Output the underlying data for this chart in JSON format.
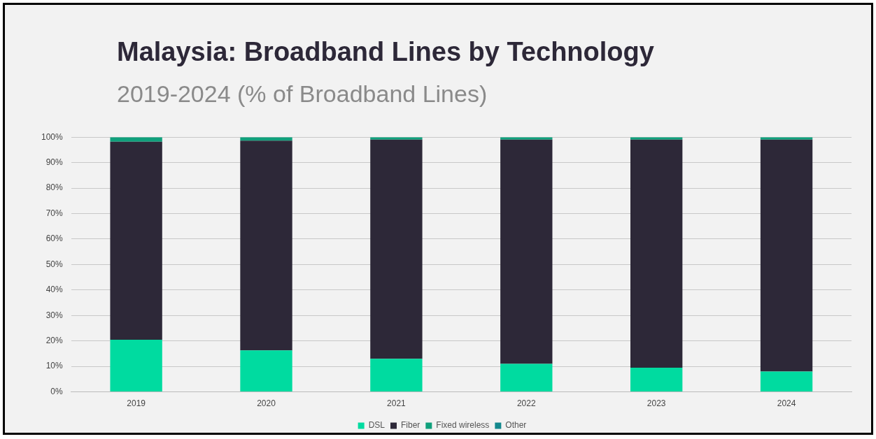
{
  "chart_data": {
    "type": "bar",
    "title": "Malaysia: Broadband Lines by Technology",
    "subtitle": "2019-2024 (% of Broadband Lines)",
    "categories": [
      "2019",
      "2020",
      "2021",
      "2022",
      "2023",
      "2024"
    ],
    "series": [
      {
        "name": "DSL",
        "color": "#00dba0",
        "values": [
          20.5,
          16.3,
          13,
          11,
          9.5,
          8
        ]
      },
      {
        "name": "Fiber",
        "color": "#2d2838",
        "values": [
          77.7,
          82.3,
          86,
          88,
          89.5,
          91
        ]
      },
      {
        "name": "Fixed wireless",
        "color": "#10a07c",
        "values": [
          1.8,
          1.4,
          1,
          1,
          1,
          1
        ]
      },
      {
        "name": "Other",
        "color": "#14898e",
        "values": [
          null,
          null,
          null,
          null,
          null,
          null
        ]
      }
    ],
    "stacked": true,
    "ylim": [
      0,
      100
    ],
    "yticks": [
      {
        "value": 0,
        "label": "0%"
      },
      {
        "value": 10,
        "label": "10%"
      },
      {
        "value": 20,
        "label": "20%"
      },
      {
        "value": 30,
        "label": "30%"
      },
      {
        "value": 40,
        "label": "40%"
      },
      {
        "value": 50,
        "label": "50%"
      },
      {
        "value": 60,
        "label": "60%"
      },
      {
        "value": 70,
        "label": "70%"
      },
      {
        "value": 80,
        "label": "80%"
      },
      {
        "value": 90,
        "label": "90%"
      },
      {
        "value": 100,
        "label": "100%"
      }
    ],
    "grid": "y",
    "legend": "bottom"
  }
}
